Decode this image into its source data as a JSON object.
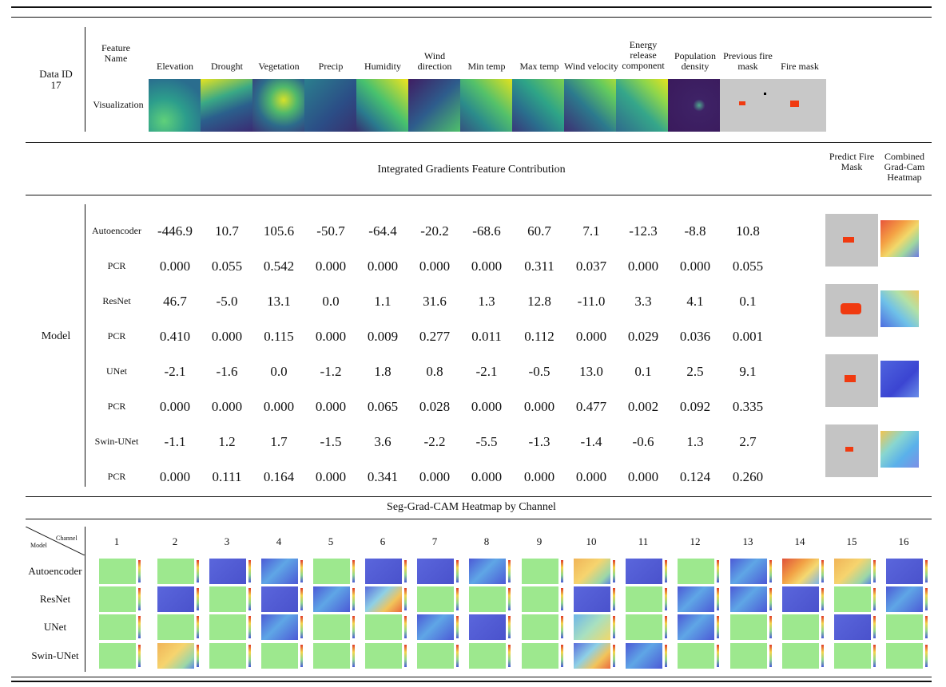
{
  "data_id_label": "Data ID",
  "data_id_value": "17",
  "feature_name_label": "Feature Name",
  "visualization_label": "Visualization",
  "features": [
    "Elevation",
    "Drought",
    "Vegetation",
    "Precip",
    "Humidity",
    "Wind direction",
    "Min temp",
    "Max temp",
    "Wind velocity",
    "Energy release component",
    "Population density",
    "Previous fire mask",
    "Fire mask"
  ],
  "ig_title": "Integrated Gradients Feature Contribution",
  "predict_label": "Predict Fire Mask",
  "combined_label": "Combined Grad-Cam Heatmap",
  "model_label": "Model",
  "rows": [
    {
      "name": "Autoencoder",
      "values": [
        "-446.9",
        "10.7",
        "105.6",
        "-50.7",
        "-64.4",
        "-20.2",
        "-68.6",
        "60.7",
        "7.1",
        "-12.3",
        "-8.8",
        "10.8"
      ]
    },
    {
      "name": "PCR",
      "values": [
        "0.000",
        "0.055",
        "0.542",
        "0.000",
        "0.000",
        "0.000",
        "0.000",
        "0.311",
        "0.037",
        "0.000",
        "0.000",
        "0.055"
      ]
    },
    {
      "name": "ResNet",
      "values": [
        "46.7",
        "-5.0",
        "13.1",
        "0.0",
        "1.1",
        "31.6",
        "1.3",
        "12.8",
        "-11.0",
        "3.3",
        "4.1",
        "0.1"
      ]
    },
    {
      "name": "PCR",
      "values": [
        "0.410",
        "0.000",
        "0.115",
        "0.000",
        "0.009",
        "0.277",
        "0.011",
        "0.112",
        "0.000",
        "0.029",
        "0.036",
        "0.001"
      ]
    },
    {
      "name": "UNet",
      "values": [
        "-2.1",
        "-1.6",
        "0.0",
        "-1.2",
        "1.8",
        "0.8",
        "-2.1",
        "-0.5",
        "13.0",
        "0.1",
        "2.5",
        "9.1"
      ]
    },
    {
      "name": "PCR",
      "values": [
        "0.000",
        "0.000",
        "0.000",
        "0.000",
        "0.065",
        "0.028",
        "0.000",
        "0.000",
        "0.477",
        "0.002",
        "0.092",
        "0.335"
      ]
    },
    {
      "name": "Swin-UNet",
      "values": [
        "-1.1",
        "1.2",
        "1.7",
        "-1.5",
        "3.6",
        "-2.2",
        "-5.5",
        "-1.3",
        "-1.4",
        "-0.6",
        "1.3",
        "2.7"
      ]
    },
    {
      "name": "PCR",
      "values": [
        "0.000",
        "0.111",
        "0.164",
        "0.000",
        "0.341",
        "0.000",
        "0.000",
        "0.000",
        "0.000",
        "0.000",
        "0.124",
        "0.260"
      ]
    }
  ],
  "seg_title": "Seg-Grad-CAM Heatmap by Channel",
  "corner_channel": "Channel",
  "corner_model": "Model",
  "channels": [
    "1",
    "2",
    "3",
    "4",
    "5",
    "6",
    "7",
    "8",
    "9",
    "10",
    "11",
    "12",
    "13",
    "14",
    "15",
    "16"
  ],
  "seg_models": [
    "Autoencoder",
    "ResNet",
    "UNet",
    "Swin-UNet"
  ],
  "heatmap_grid": [
    [
      "green",
      "green",
      "blue",
      "mixblue",
      "green",
      "blue",
      "blue",
      "mixblue",
      "green",
      "warm",
      "blue",
      "green",
      "mixblue",
      "hot",
      "warm",
      "blue"
    ],
    [
      "green",
      "blue",
      "green",
      "blue",
      "mixblue",
      "mixhot",
      "green",
      "green",
      "green",
      "blue",
      "green",
      "mixblue",
      "mixblue",
      "blue",
      "green",
      "mixblue"
    ],
    [
      "green",
      "green",
      "green",
      "mixblue",
      "green",
      "green",
      "mixblue",
      "blue",
      "green",
      "cyan",
      "green",
      "mixblue",
      "green",
      "green",
      "blue",
      "green"
    ],
    [
      "green",
      "warm",
      "green",
      "green",
      "green",
      "green",
      "green",
      "green",
      "green",
      "mixhot",
      "mixblue",
      "green",
      "green",
      "green",
      "green",
      "green"
    ]
  ],
  "colors": {
    "fire": "#f03a10",
    "grey": "#c8c8c8",
    "green": "#9de88e",
    "blue": "#5560d8"
  }
}
